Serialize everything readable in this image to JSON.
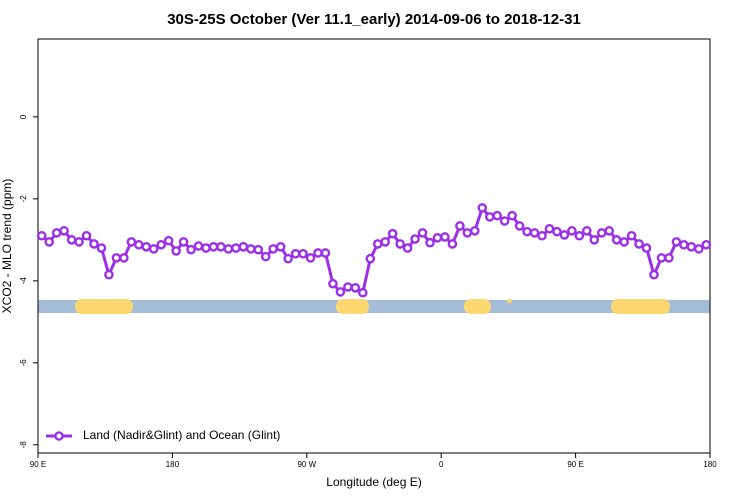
{
  "chart_data": {
    "type": "line",
    "title": "30S-25S October (Ver 11.1_early)   2014-09-06 to 2018-12-31",
    "x_label": "Longitude (deg E)",
    "y_label": "XCO2 - MLO trend (ppm)",
    "xlim": [
      90,
      540
    ],
    "xticks": [
      {
        "value": 90,
        "label": "90 E"
      },
      {
        "value": 180,
        "label": "180"
      },
      {
        "value": 270,
        "label": "90 W"
      },
      {
        "value": 360,
        "label": "0"
      },
      {
        "value": 450,
        "label": "90 E"
      },
      {
        "value": 540,
        "label": "180"
      }
    ],
    "ylim": [
      -8.2,
      1.9
    ],
    "yticks": [
      0,
      -2,
      -4,
      -6,
      -8
    ],
    "legend": "bottom-left",
    "x": [
      92.5,
      97.5,
      102.5,
      107.5,
      112.5,
      117.5,
      122.5,
      127.5,
      132.5,
      137.5,
      142.5,
      147.5,
      152.5,
      157.5,
      162.5,
      167.5,
      172.5,
      177.5,
      182.5,
      187.5,
      192.5,
      197.5,
      202.5,
      207.5,
      212.5,
      217.5,
      222.5,
      227.5,
      232.5,
      237.5,
      242.5,
      247.5,
      252.5,
      257.5,
      262.5,
      267.5,
      272.5,
      277.5,
      282.5,
      287.5,
      292.5,
      297.5,
      302.5,
      307.5,
      312.5,
      317.5,
      322.5,
      327.5,
      332.5,
      337.5,
      342.5,
      347.5,
      352.5,
      357.5,
      362.5,
      367.5,
      372.5,
      377.5,
      382.5,
      387.5,
      392.5,
      397.5,
      402.5,
      407.5,
      412.5,
      417.5,
      422.5,
      427.5,
      432.5,
      437.5,
      442.5,
      447.5,
      452.5,
      457.5,
      462.5,
      467.5,
      472.5,
      477.5,
      482.5,
      487.5,
      492.5,
      497.5,
      502.5,
      507.5,
      512.5,
      517.5,
      522.5,
      527.5,
      532.5,
      537.5
    ],
    "series": [
      {
        "name": "Land (Nadir&Glint) and Ocean (Glint)",
        "color": "#9b30e6",
        "values": [
          -2.9,
          -3.05,
          -2.83,
          -2.78,
          -3.0,
          -3.05,
          -2.9,
          -3.1,
          -3.2,
          -3.85,
          -3.44,
          -3.44,
          -3.05,
          -3.12,
          -3.17,
          -3.22,
          -3.12,
          -3.02,
          -3.27,
          -3.05,
          -3.24,
          -3.15,
          -3.2,
          -3.17,
          -3.17,
          -3.22,
          -3.2,
          -3.17,
          -3.22,
          -3.24,
          -3.41,
          -3.22,
          -3.17,
          -3.46,
          -3.34,
          -3.34,
          -3.44,
          -3.32,
          -3.32,
          -4.07,
          -4.27,
          -4.15,
          -4.17,
          -4.29,
          -3.46,
          -3.1,
          -3.05,
          -2.85,
          -3.1,
          -3.2,
          -2.98,
          -2.83,
          -3.07,
          -2.95,
          -2.93,
          -3.1,
          -2.66,
          -2.83,
          -2.78,
          -2.22,
          -2.44,
          -2.41,
          -2.54,
          -2.41,
          -2.66,
          -2.8,
          -2.83,
          -2.9,
          -2.73,
          -2.8,
          -2.88,
          -2.78,
          -2.9,
          -2.78,
          -3.0,
          -2.83,
          -2.78,
          -3.0,
          -3.05,
          -2.9,
          -3.1,
          -3.2,
          -3.85,
          -3.44,
          -3.44,
          -3.05,
          -3.12,
          -3.17,
          -3.22,
          -3.12
        ]
      }
    ]
  }
}
